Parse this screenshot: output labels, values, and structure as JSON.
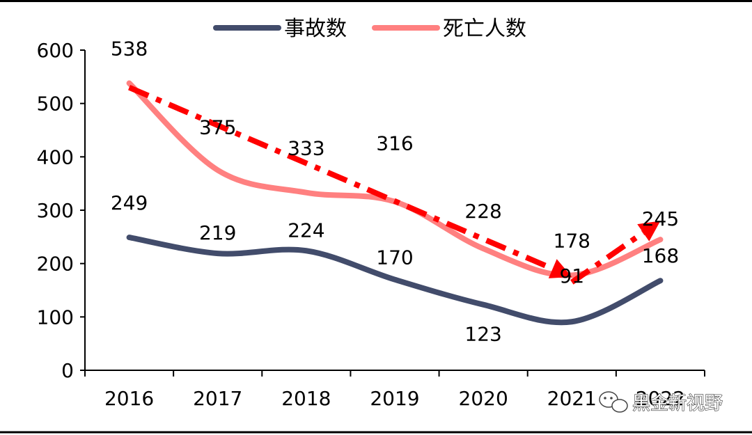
{
  "chart_data": {
    "type": "line",
    "categories": [
      "2016",
      "2017",
      "2018",
      "2019",
      "2020",
      "2021",
      "2022"
    ],
    "series": [
      {
        "name": "事故数",
        "values": [
          249,
          219,
          224,
          170,
          123,
          91,
          168
        ],
        "color": "#424C6B"
      },
      {
        "name": "死亡人数",
        "values": [
          538,
          375,
          333,
          316,
          228,
          178,
          245
        ],
        "color": "#FF8080"
      }
    ],
    "y_ticks": [
      "0",
      "100",
      "200",
      "300",
      "400",
      "500",
      "600"
    ],
    "ylim": [
      0,
      600
    ],
    "legend_position": "top",
    "grid": false,
    "annotations": [
      {
        "type": "trend-arrow-dashed",
        "color": "#FF0000",
        "from": [
          "2016",
          530
        ],
        "to": [
          "2021",
          175
        ]
      },
      {
        "type": "trend-arrow-dashed",
        "color": "#FF0000",
        "from": [
          "2021",
          165
        ],
        "to": [
          "2022",
          280
        ]
      }
    ]
  },
  "watermark": {
    "text": "黑金新视野",
    "icon": "wechat-icon"
  },
  "colors": {
    "trend_arrow": "#FF0000",
    "frame": "#000000"
  }
}
